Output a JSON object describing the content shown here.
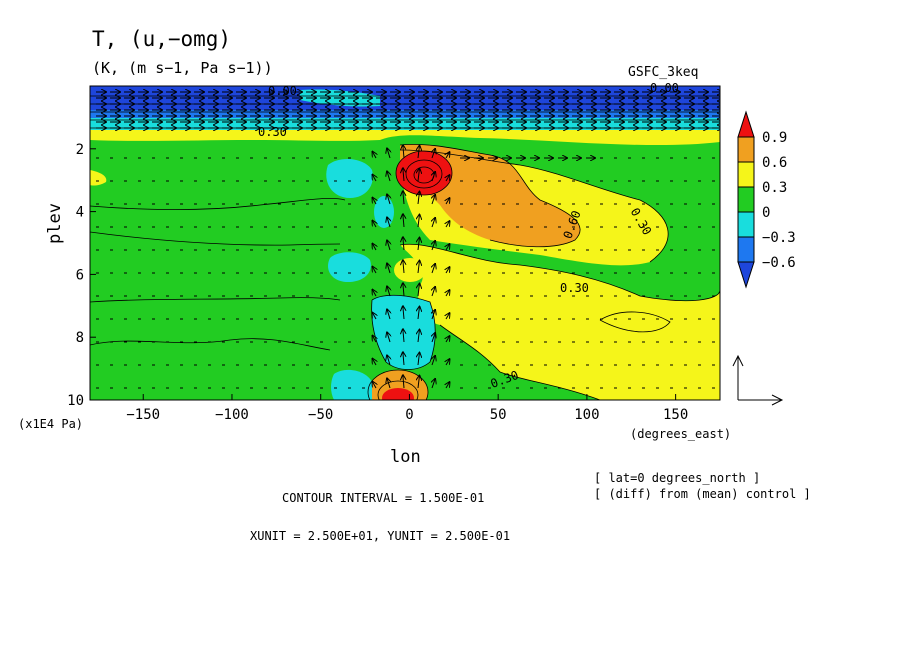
{
  "chart_data": {
    "type": "heatmap",
    "title": "T, (u,−omg)",
    "subtitle": "(K, (m s−1, Pa s−1))",
    "model": "GSFC_3keq",
    "xlabel": "lon",
    "x_unit": "(degrees_east)",
    "ylabel": "plev",
    "y_unit": "(x1E4 Pa)",
    "xlim": [
      -180,
      175
    ],
    "ylim": [
      10,
      0
    ],
    "x_ticks": [
      -150,
      -100,
      -50,
      0,
      50,
      100,
      150
    ],
    "y_ticks": [
      2,
      4,
      6,
      8,
      10
    ],
    "colorbar": {
      "labels": [
        "0.9",
        "0.6",
        "0.3",
        "0",
        "−0.3",
        "−0.6"
      ],
      "colors": [
        "#ee1111",
        "#f0a020",
        "#f5f51a",
        "#22cc22",
        "#19dddd",
        "#1e78f0",
        "#1e46dc"
      ]
    },
    "contour_labels": [
      "0.00",
      "0.30",
      "0.60",
      "0.30",
      "0.30",
      "0.30",
      "0.00"
    ],
    "info": {
      "line1": "[ lat=0 degrees_north ]",
      "line2": "[ (diff) from (mean) control ]",
      "contour_interval": "CONTOUR INTERVAL = 1.500E-01",
      "units": "XUNIT = 2.500E+01, YUNIT = 2.500E-01"
    }
  }
}
